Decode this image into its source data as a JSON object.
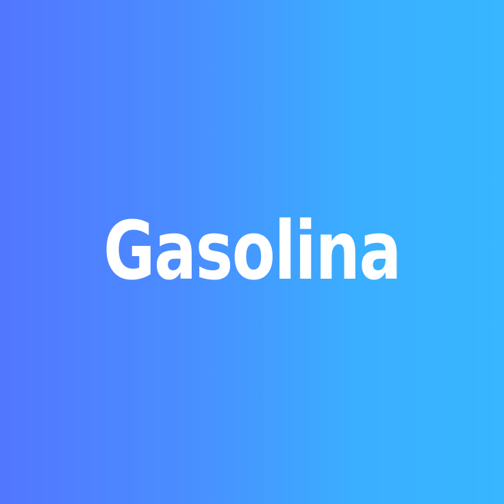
{
  "text": {
    "title": "Gasolina"
  },
  "colors": {
    "gradient_start": "#5276ff",
    "gradient_end": "#38b6ff",
    "text": "#ffffff"
  }
}
